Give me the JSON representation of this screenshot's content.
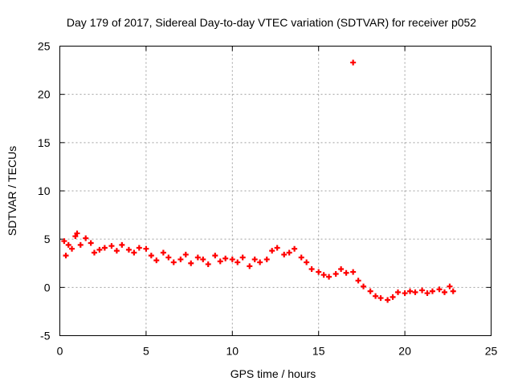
{
  "chart_data": {
    "type": "scatter",
    "title": "Day 179 of 2017, Sidereal Day-to-day VTEC variation (SDTVAR) for receiver p052",
    "xlabel": "GPS time / hours",
    "ylabel": "SDTVAR / TECUs",
    "xlim": [
      0,
      25
    ],
    "ylim": [
      -5,
      25
    ],
    "xticks": [
      0,
      5,
      10,
      15,
      20,
      25
    ],
    "yticks": [
      -5,
      0,
      5,
      10,
      15,
      20,
      25
    ],
    "grid": true,
    "marker": "plus",
    "series": [
      {
        "name": "SDTVAR",
        "color": "#ff0000",
        "x": [
          0.25,
          0.35,
          0.5,
          0.7,
          0.9,
          1.0,
          1.2,
          1.5,
          1.8,
          2.0,
          2.3,
          2.6,
          3.0,
          3.3,
          3.6,
          4.0,
          4.3,
          4.6,
          5.0,
          5.3,
          5.6,
          6.0,
          6.3,
          6.6,
          7.0,
          7.3,
          7.6,
          8.0,
          8.3,
          8.6,
          9.0,
          9.3,
          9.6,
          10.0,
          10.3,
          10.6,
          11.0,
          11.3,
          11.6,
          12.0,
          12.3,
          12.6,
          13.0,
          13.3,
          13.6,
          14.0,
          14.3,
          14.6,
          15.0,
          15.3,
          15.6,
          16.0,
          16.3,
          16.6,
          17.0,
          17.3,
          17.6,
          18.0,
          18.3,
          18.6,
          19.0,
          19.3,
          19.6,
          20.0,
          20.3,
          20.6,
          21.0,
          21.3,
          21.6,
          22.0,
          22.3,
          22.6,
          22.8,
          17.0
        ],
        "y": [
          4.8,
          3.3,
          4.4,
          4.0,
          5.3,
          5.6,
          4.4,
          5.1,
          4.6,
          3.6,
          3.9,
          4.1,
          4.3,
          3.8,
          4.4,
          3.9,
          3.6,
          4.1,
          4.0,
          3.3,
          2.8,
          3.6,
          3.1,
          2.6,
          2.9,
          3.4,
          2.5,
          3.1,
          2.9,
          2.4,
          3.3,
          2.7,
          3.0,
          2.9,
          2.6,
          3.1,
          2.2,
          2.9,
          2.6,
          2.9,
          3.8,
          4.1,
          3.4,
          3.6,
          4.0,
          3.1,
          2.6,
          1.9,
          1.6,
          1.3,
          1.1,
          1.4,
          1.9,
          1.5,
          1.6,
          0.7,
          0.1,
          -0.4,
          -0.9,
          -1.1,
          -1.3,
          -1.0,
          -0.5,
          -0.6,
          -0.4,
          -0.5,
          -0.3,
          -0.6,
          -0.4,
          -0.2,
          -0.5,
          0.1,
          -0.4,
          23.3
        ]
      }
    ]
  }
}
